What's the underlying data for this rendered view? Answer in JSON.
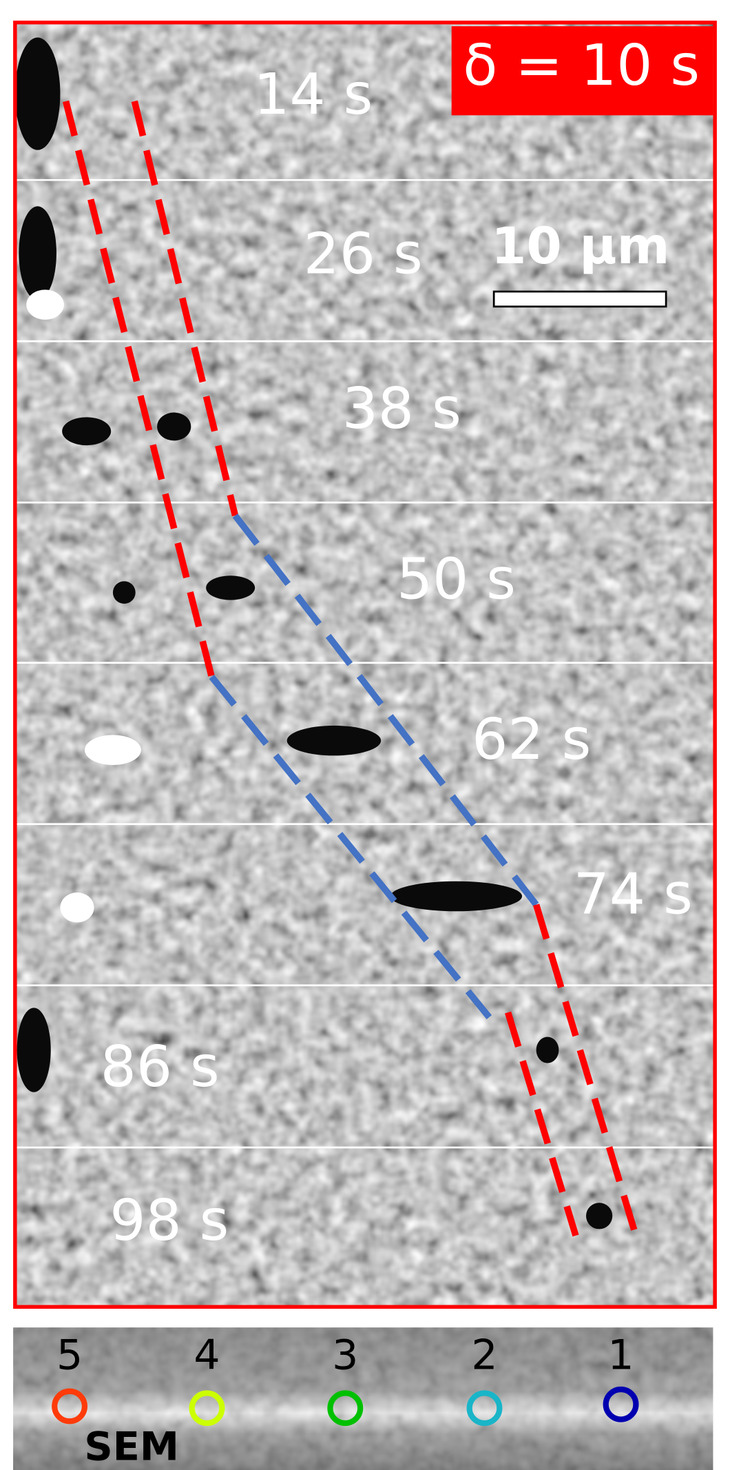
{
  "badge": "δ = 10 s",
  "scale_bar": "10 µm",
  "frames": [
    "14 s",
    "26 s",
    "38 s",
    "50 s",
    "62 s",
    "74 s",
    "86 s",
    "98 s"
  ],
  "markers": [
    "5",
    "4",
    "3",
    "2",
    "1"
  ],
  "sem_label": "SEM"
}
